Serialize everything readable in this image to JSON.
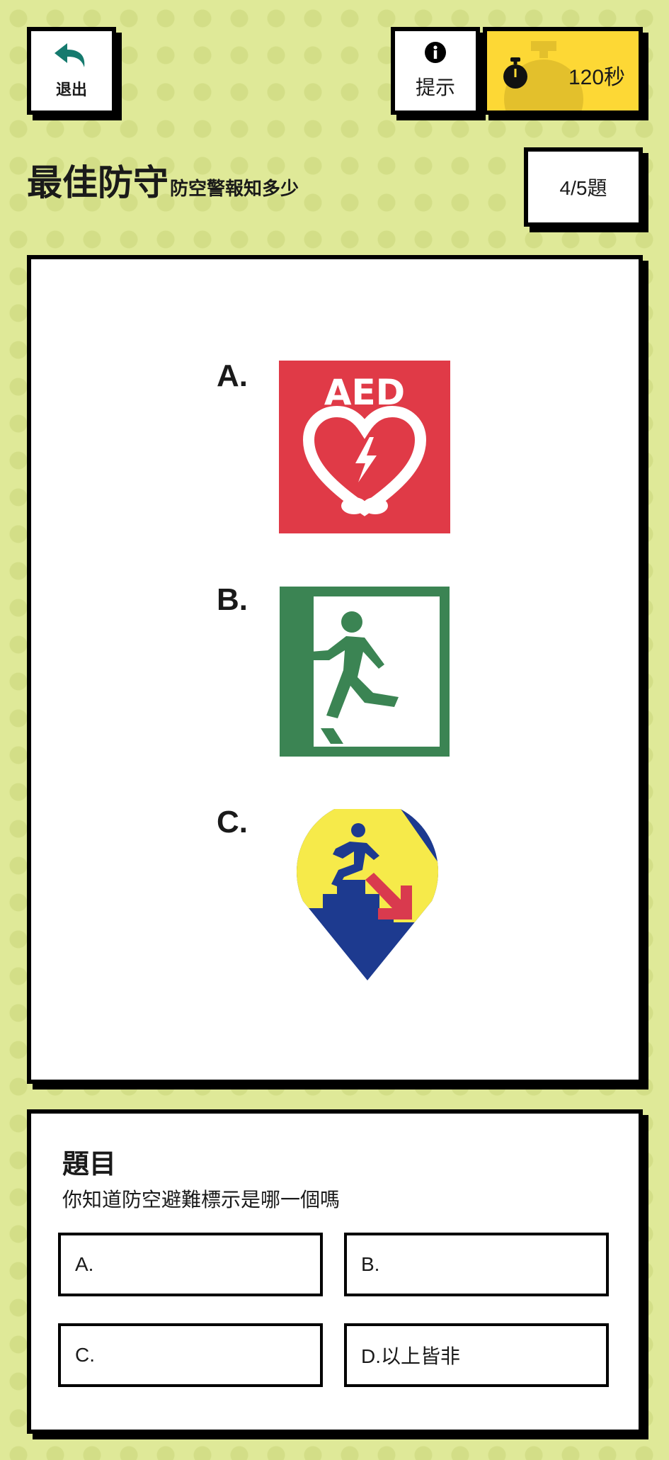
{
  "header": {
    "exit_label": "退出",
    "hint_label": "提示",
    "timer_text": "120秒"
  },
  "title": {
    "main": "最佳防守",
    "sub": "防空警報知多少"
  },
  "progress": {
    "text": "4/5題"
  },
  "options": [
    {
      "letter": "A.",
      "icon": "aed-sign-icon",
      "icon_text": "AED",
      "color": "#e03a47"
    },
    {
      "letter": "B.",
      "icon": "emergency-exit-sign-icon",
      "color": "#3b8453"
    },
    {
      "letter": "C.",
      "icon": "air-raid-shelter-sign-icon",
      "colors": [
        "#1d3a8f",
        "#f6ea4a",
        "#d93a4e"
      ]
    }
  ],
  "question": {
    "heading": "題目",
    "text": "你知道防空避難標示是哪一個嗎",
    "answers": [
      {
        "label": "A."
      },
      {
        "label": "B."
      },
      {
        "label": "C."
      },
      {
        "label": "D.以上皆非"
      }
    ]
  },
  "colors": {
    "background": "#dfe998",
    "timer": "#fdd835",
    "exit_arrow": "#157a6e"
  }
}
